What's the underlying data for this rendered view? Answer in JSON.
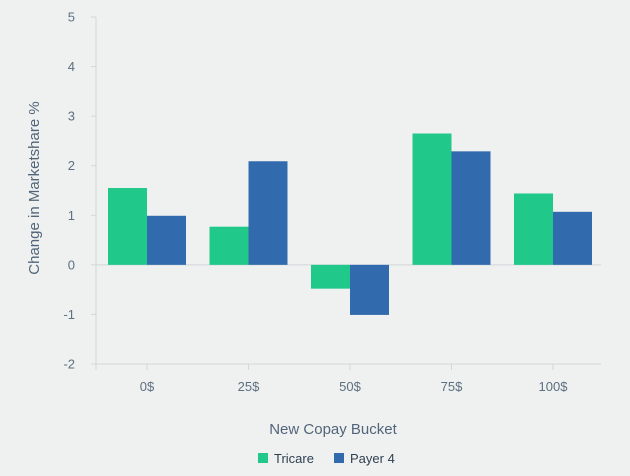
{
  "chart_data": {
    "type": "bar",
    "title": "",
    "xlabel": "New Copay Bucket",
    "ylabel": "Change in Marketshare %",
    "categories": [
      "0$",
      "25$",
      "50$",
      "75$",
      "100$"
    ],
    "series": [
      {
        "name": "Tricare",
        "color": "#20c88a",
        "values": [
          1.55,
          0.77,
          -0.48,
          2.65,
          1.44
        ]
      },
      {
        "name": "Payer 4",
        "color": "#326bad",
        "values": [
          0.99,
          2.09,
          -1.01,
          2.29,
          1.07
        ]
      }
    ],
    "ylim": [
      -2,
      5
    ],
    "yticks": [
      "-2",
      "-1",
      "0",
      "1",
      "2",
      "3",
      "4",
      "5"
    ],
    "grid": false,
    "legend_position": "bottom-center",
    "colors": {
      "background": "#eff1f0",
      "axis": "#d0d6da",
      "tick_text": "#5e6f80",
      "title_text": "#52657a",
      "highlight_tick_text": "#1e3449"
    },
    "highlighted_category": "75$"
  }
}
